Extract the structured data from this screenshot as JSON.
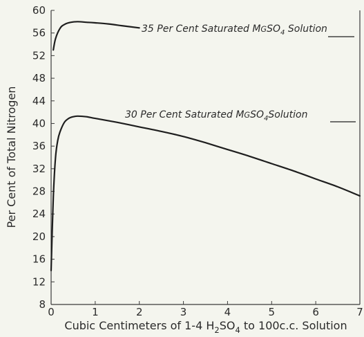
{
  "chart_data": {
    "type": "line",
    "title": "",
    "xlabel_parts": [
      "Cubic Centimeters of 1-4 H",
      "2",
      "SO",
      "4",
      " to 100c.c. Solution"
    ],
    "ylabel": "Per Cent of Total Nitrogen",
    "xlim": [
      0,
      7
    ],
    "ylim": [
      8,
      60
    ],
    "x_ticks": [
      "0",
      "1",
      "2",
      "3",
      "4",
      "5",
      "6",
      "7"
    ],
    "y_ticks": [
      "8",
      "12",
      "16",
      "20",
      "24",
      "28",
      "32",
      "36",
      "40",
      "44",
      "48",
      "52",
      "56",
      "60"
    ],
    "grid": false,
    "series": [
      {
        "name_parts": [
          "35 Per Cent Saturated M",
          "G",
          "SO",
          "4",
          " Solution"
        ],
        "x": [
          0.05,
          0.1,
          0.2,
          0.3,
          0.45,
          0.6,
          0.8,
          1.0,
          1.3,
          1.6,
          2.0
        ],
        "y": [
          53,
          55,
          56.8,
          57.5,
          57.9,
          58.0,
          57.9,
          57.8,
          57.6,
          57.3,
          56.9
        ]
      },
      {
        "name_parts": [
          "30 Per Cent Saturated M",
          "G",
          "SO",
          "4",
          "Solution"
        ],
        "x": [
          0,
          0.05,
          0.1,
          0.15,
          0.2,
          0.3,
          0.4,
          0.5,
          0.6,
          0.8,
          1.0,
          1.5,
          2.0,
          2.5,
          3.0,
          3.5,
          4.0,
          4.5,
          5.0,
          5.5,
          6.0,
          6.5,
          7.0
        ],
        "y": [
          14,
          27,
          34,
          37,
          38.5,
          40.2,
          40.9,
          41.2,
          41.3,
          41.2,
          40.9,
          40.2,
          39.4,
          38.6,
          37.7,
          36.6,
          35.4,
          34.2,
          32.9,
          31.6,
          30.2,
          28.8,
          27.2
        ]
      }
    ]
  }
}
